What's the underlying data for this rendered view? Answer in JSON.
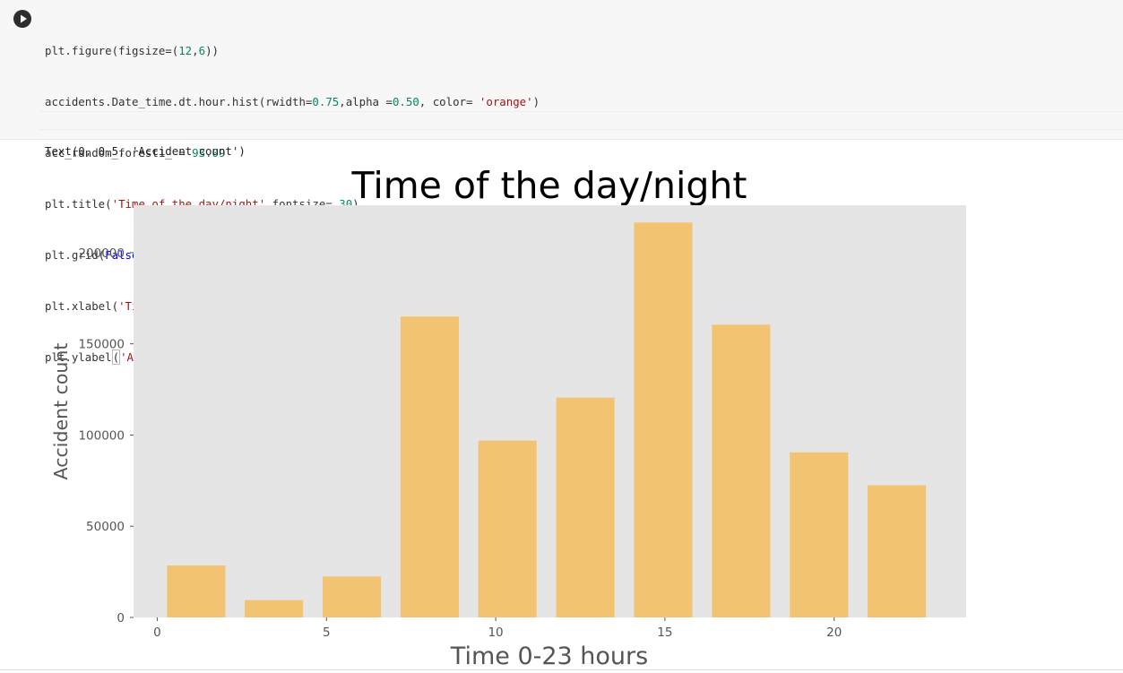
{
  "code_cell": {
    "lines": [
      "plt.figure(figsize=(12,6))",
      "accidents.Date_time.dt.hour.hist(rwidth=0.75,alpha =0.50, color= 'orange')",
      "acc_random_forest1_ = 93.09",
      "plt.title('Time of the day/night',fontsize= 30)",
      "plt.grid(False)",
      "plt.xlabel('Time 0-23 hours' , fontsize = 20)",
      "plt.ylabel('Accident count' , fontsize = 15)"
    ]
  },
  "output": {
    "text": "Text(0, 0.5, 'Accident count')"
  },
  "colors": {
    "bar": "#f2c471",
    "plot_bg": "#e5e5e5",
    "tick_text": "#555555",
    "label_text": "#555555",
    "title_text": "#000000"
  },
  "chart_data": {
    "type": "bar",
    "title": "Time of the day/night",
    "xlabel": "Time 0-23 hours",
    "ylabel": "Accident count",
    "xlim": [
      -0.7,
      23.9
    ],
    "ylim": [
      0,
      226000
    ],
    "xticks": [
      0,
      5,
      10,
      15,
      20
    ],
    "yticks": [
      0,
      50000,
      100000,
      150000,
      200000
    ],
    "grid": false,
    "bins": [
      {
        "start": 0.0,
        "end": 2.3,
        "value": 28500
      },
      {
        "start": 2.3,
        "end": 4.6,
        "value": 9500
      },
      {
        "start": 4.6,
        "end": 6.9,
        "value": 22500
      },
      {
        "start": 6.9,
        "end": 9.2,
        "value": 165000
      },
      {
        "start": 9.2,
        "end": 11.5,
        "value": 97000
      },
      {
        "start": 11.5,
        "end": 13.8,
        "value": 120500
      },
      {
        "start": 13.8,
        "end": 16.1,
        "value": 216500
      },
      {
        "start": 16.1,
        "end": 18.4,
        "value": 160500
      },
      {
        "start": 18.4,
        "end": 20.7,
        "value": 90500
      },
      {
        "start": 20.7,
        "end": 23.0,
        "value": 72500
      }
    ],
    "rwidth": 0.75
  }
}
